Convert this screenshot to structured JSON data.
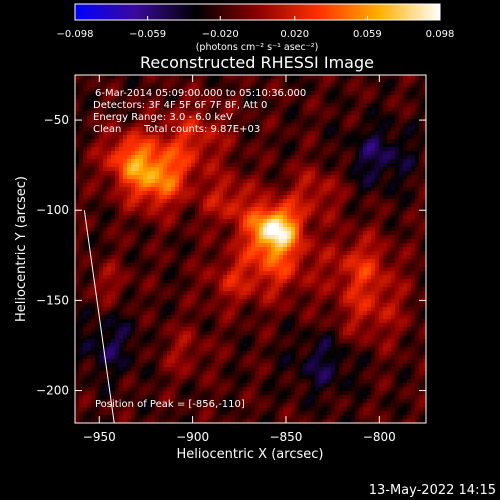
{
  "chart_data": {
    "type": "heatmap",
    "title": "Reconstructed RHESSI Image",
    "xlabel": "Heliocentric X (arcsec)",
    "ylabel": "Heliocentric Y (arcsec)",
    "xlim": [
      -963,
      -775
    ],
    "ylim": [
      -218,
      -25
    ],
    "x_ticks": [
      -950,
      -900,
      -850,
      -800
    ],
    "y_ticks": [
      -200,
      -150,
      -100,
      -50
    ],
    "x_tick_labels": [
      "−950",
      "−900",
      "−850",
      "−800"
    ],
    "y_tick_labels": [
      "−200",
      "−150",
      "−100",
      "−50"
    ],
    "colorbar": {
      "min": -0.098,
      "max": 0.098,
      "ticks": [
        -0.098,
        -0.059,
        -0.02,
        0.02,
        0.059,
        0.098
      ],
      "tick_labels": [
        "−0.098",
        "−0.059",
        "−0.020",
        "0.020",
        "0.059",
        "0.098"
      ],
      "unit_label": "(photons cm⁻² s⁻¹ asec⁻²)",
      "colormap": [
        "#0000ff",
        "#3a0a9a",
        "#000000",
        "#8b0000",
        "#ff3000",
        "#ffb000",
        "#ffffff"
      ]
    },
    "sources": [
      {
        "x": -856,
        "y": -110,
        "sigma": 9,
        "peak": 0.098
      },
      {
        "x": -856,
        "y": -128,
        "sigma": 14,
        "peak": 0.045
      },
      {
        "x": -920,
        "y": -82,
        "sigma": 12,
        "peak": 0.07
      },
      {
        "x": -935,
        "y": -70,
        "sigma": 10,
        "peak": 0.045
      },
      {
        "x": -900,
        "y": -60,
        "sigma": 13,
        "peak": 0.035
      },
      {
        "x": -880,
        "y": -95,
        "sigma": 10,
        "peak": 0.035
      },
      {
        "x": -810,
        "y": -130,
        "sigma": 12,
        "peak": 0.035
      },
      {
        "x": -805,
        "y": -155,
        "sigma": 14,
        "peak": 0.03
      },
      {
        "x": -880,
        "y": -140,
        "sigma": 10,
        "peak": 0.025
      },
      {
        "x": -835,
        "y": -90,
        "sigma": 10,
        "peak": 0.03
      },
      {
        "x": -945,
        "y": -140,
        "sigma": 8,
        "peak": 0.02
      },
      {
        "x": -905,
        "y": -178,
        "sigma": 10,
        "peak": 0.02
      },
      {
        "x": -945,
        "y": -175,
        "sigma": 12,
        "peak": -0.025
      },
      {
        "x": -800,
        "y": -70,
        "sigma": 12,
        "peak": -0.03
      },
      {
        "x": -830,
        "y": -185,
        "sigma": 12,
        "peak": -0.025
      }
    ],
    "limb_line": {
      "x": [
        -958,
        -942
      ],
      "y": [
        -100,
        -218
      ]
    },
    "peak_position": {
      "x": -856,
      "y": -110
    }
  },
  "annotations": {
    "time_range": "6-Mar-2014 05:09:00.000 to 05:10:36.000",
    "detectors": "Detectors: 3F 4F 5F 6F 7F 8F, Att 0",
    "energy_range": "Energy Range: 3.0 - 6.0 keV",
    "clean": "Clean",
    "total_counts": "Total counts: 9.87E+03",
    "peak_position": "Position of Peak = [-856,-110]"
  },
  "footer": {
    "date_stamp": "13-May-2022 14:15"
  }
}
